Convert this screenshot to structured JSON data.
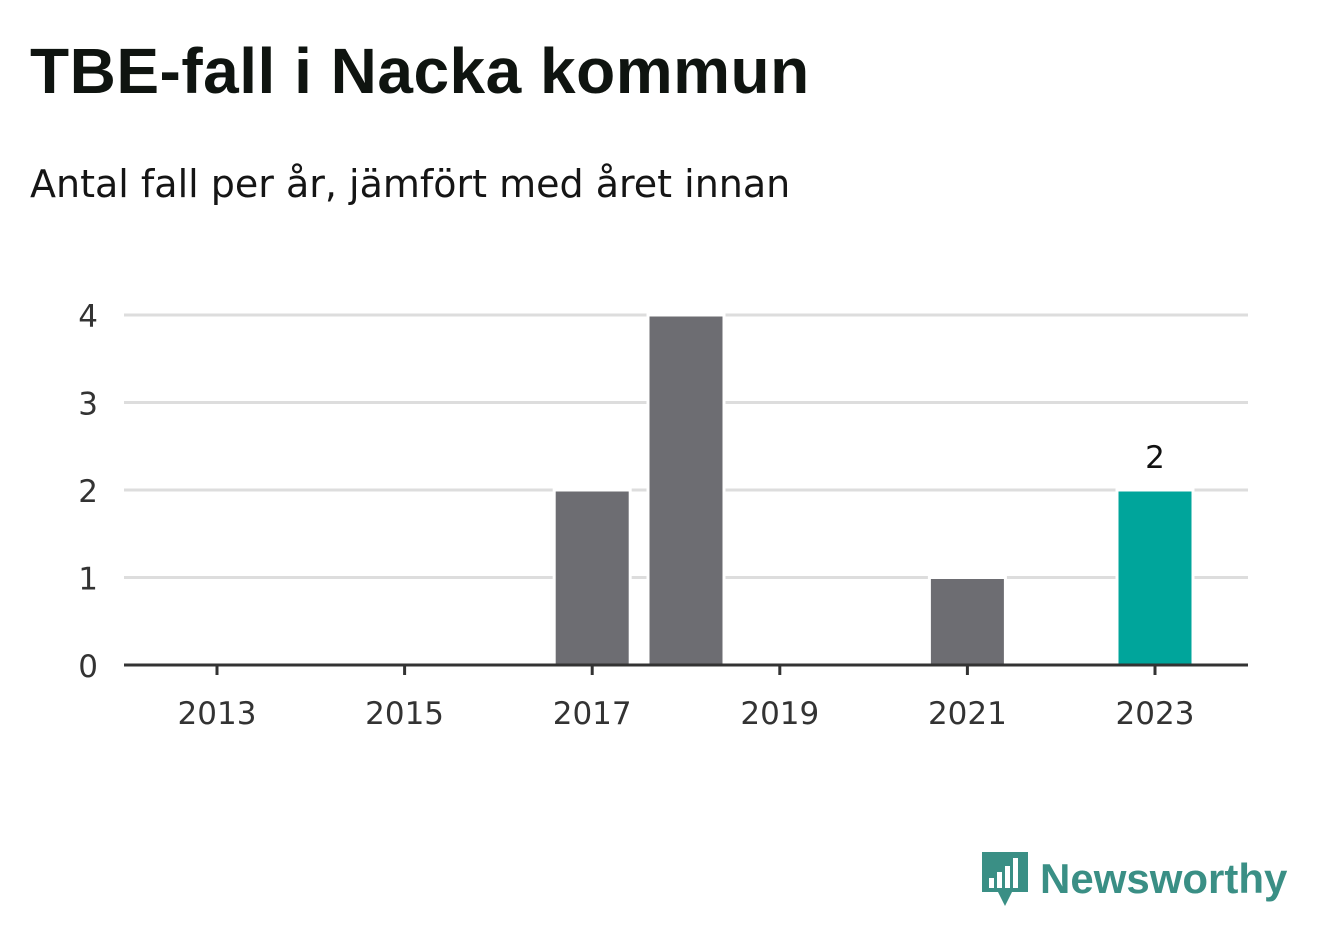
{
  "title": "TBE-fall i Nacka kommun",
  "subtitle": "Antal fall per år, jämfört med året innan",
  "brand": {
    "name": "Newsworthy",
    "icon": "newsworthy-logo-icon",
    "color": "#3a8f85"
  },
  "colors": {
    "bar": "#6d6d72",
    "highlight": "#00a59b",
    "grid": "#dddddd",
    "axis": "#333333"
  },
  "chart_data": {
    "type": "bar",
    "categories": [
      "2013",
      "2014",
      "2015",
      "2016",
      "2017",
      "2018",
      "2019",
      "2020",
      "2021",
      "2022",
      "2023"
    ],
    "values": [
      0,
      0,
      0,
      0,
      2,
      4,
      0,
      0,
      1,
      0,
      2
    ],
    "x_tick_labels": [
      "2013",
      "2015",
      "2017",
      "2019",
      "2021",
      "2023"
    ],
    "y_ticks": [
      0,
      1,
      2,
      3,
      4
    ],
    "ylim": [
      0,
      4
    ],
    "highlight_category": "2023",
    "data_labels": [
      {
        "category": "2023",
        "text": "2"
      }
    ],
    "grid": true,
    "xlabel": "",
    "ylabel": ""
  }
}
